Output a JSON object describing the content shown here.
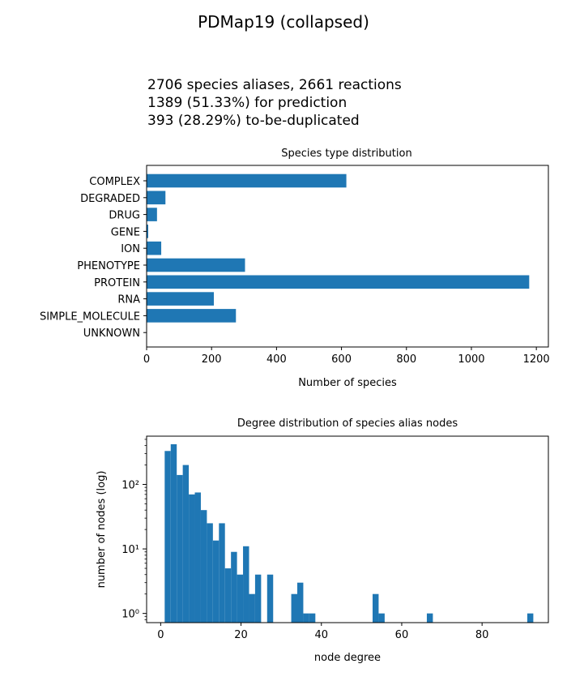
{
  "figure": {
    "title": "PDMap19 (collapsed)",
    "info_lines": [
      "2706 species aliases, 2661 reactions",
      "1389 (51.33%) for prediction",
      "393 (28.29%) to-be-duplicated"
    ],
    "bar_color": "#1f77b4"
  },
  "chart_data": [
    {
      "type": "bar",
      "orientation": "horizontal",
      "title": "Species type distribution",
      "xlabel": "Number of species",
      "ylabel": "",
      "categories": [
        "COMPLEX",
        "DEGRADED",
        "DRUG",
        "GENE",
        "ION",
        "PHENOTYPE",
        "PROTEIN",
        "RNA",
        "SIMPLE_MOLECULE",
        "UNKNOWN"
      ],
      "values": [
        615,
        58,
        32,
        5,
        45,
        303,
        1178,
        207,
        275,
        0
      ],
      "xlim": [
        0,
        1237
      ],
      "xticks": [
        0,
        200,
        400,
        600,
        800,
        1000,
        1200
      ],
      "grid": false
    },
    {
      "type": "bar",
      "subtype": "histogram",
      "title": "Degree distribution of species alias nodes",
      "xlabel": "node degree",
      "ylabel": "number of nodes (log)",
      "yscale": "log",
      "bin_width": 1.5,
      "bin_start": 1,
      "counts": [
        330,
        420,
        140,
        200,
        70,
        75,
        40,
        25,
        13.5,
        25,
        5,
        9,
        4,
        11,
        2,
        4,
        0,
        4,
        0,
        0,
        0,
        2,
        3,
        1,
        1,
        0,
        0,
        0,
        0,
        0,
        0,
        0,
        0,
        0,
        0,
        0,
        0,
        0,
        0,
        0,
        0,
        0,
        0,
        0,
        0,
        0,
        0,
        0,
        0,
        0,
        0,
        0,
        0,
        0,
        0,
        0,
        0,
        0,
        0,
        0,
        0,
        0,
        0,
        0,
        0,
        0,
        0,
        0,
        0,
        0,
        0,
        0,
        0,
        0,
        0,
        0,
        0,
        0,
        0,
        0,
        0,
        0,
        0,
        0,
        0,
        0,
        0,
        0,
        0,
        0,
        0,
        0,
        0,
        0,
        0,
        0,
        0,
        0,
        0,
        0
      ],
      "points": [
        {
          "x": 53.5,
          "y": 2
        },
        {
          "x": 55,
          "y": 1
        },
        {
          "x": 67,
          "y": 1
        },
        {
          "x": 92,
          "y": 1
        }
      ],
      "xlim": [
        -3.5,
        96.5
      ],
      "ylim": [
        0.72,
        560
      ],
      "xticks": [
        0,
        20,
        40,
        60,
        80
      ],
      "yticks": [
        "10⁰",
        "10¹",
        "10²"
      ],
      "grid": false
    }
  ]
}
